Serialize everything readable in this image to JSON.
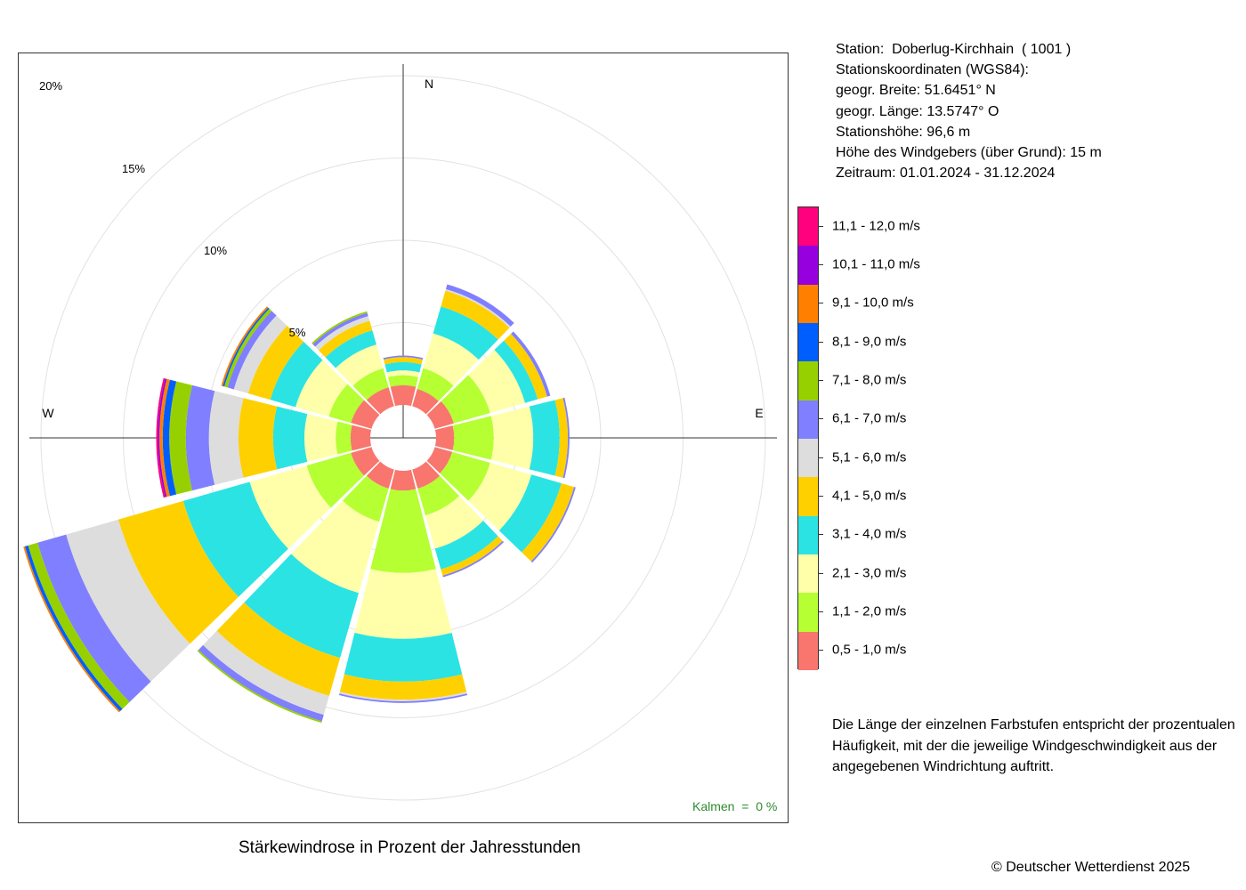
{
  "station": {
    "line1": "Station:  Doberlug-Kirchhain  ( 1001 )",
    "line2": "Stationskoordinaten (WGS84):",
    "line3": "geogr. Breite: 51.6451° N",
    "line4": "geogr. Länge: 13.5747° O",
    "line5": "Stationshöhe: 96,6 m",
    "line6": "Höhe des Windgebers (über Grund): 15 m",
    "line7": "Zeitraum: 01.01.2024 - 31.12.2024"
  },
  "note": "Die Länge der einzelnen Farbstufen entspricht der prozentualen Häufigkeit, mit der die jeweilige Windgeschwindigkeit aus der angegebenen Windrichtung auftritt.",
  "caption": "Stärkewindrose in Prozent der Jahresstunden",
  "copyright": "© Deutscher Wetterdienst  2025",
  "calm_label": "Kalmen  =  0 %",
  "chart_data": {
    "type": "windrose",
    "unit": "%",
    "radial_ticks": [
      5,
      10,
      15,
      20
    ],
    "radial_tick_labels": [
      "5%",
      "10%",
      "15%",
      "20%"
    ],
    "compass_labels": {
      "N": "N",
      "E": "E",
      "W": "W"
    },
    "calm_percent": 0,
    "directions_deg": [
      0,
      30,
      60,
      90,
      120,
      150,
      180,
      210,
      240,
      270,
      300,
      330
    ],
    "speed_classes": [
      {
        "label": "0,5 - 1,0 m/s",
        "color": "#F8766D"
      },
      {
        "label": "1,1 - 2,0 m/s",
        "color": "#B5FF33"
      },
      {
        "label": "2,1 - 3,0 m/s",
        "color": "#FFFFAA"
      },
      {
        "label": "3,1 - 4,0 m/s",
        "color": "#2BE3E3"
      },
      {
        "label": "4,1 - 5,0 m/s",
        "color": "#FFD000"
      },
      {
        "label": "5,1 - 6,0 m/s",
        "color": "#DDDDDD"
      },
      {
        "label": "6,1 - 7,0 m/s",
        "color": "#7F7FFF"
      },
      {
        "label": "7,1 - 8,0 m/s",
        "color": "#96D000"
      },
      {
        "label": "8,1 - 9,0 m/s",
        "color": "#005EFF"
      },
      {
        "label": "9,1 - 10,0 m/s",
        "color": "#FF8000"
      },
      {
        "label": "10,1 - 11,0 m/s",
        "color": "#9600DE"
      },
      {
        "label": "11,1 - 12,0 m/s",
        "color": "#FF007E"
      }
    ],
    "values": [
      [
        1.2,
        0.6,
        0.3,
        0.5,
        0.3,
        0.0,
        0.1,
        0.0,
        0.0,
        0.0,
        0.0,
        0.0
      ],
      [
        1.1,
        1.3,
        2.2,
        1.7,
        1.0,
        0.1,
        0.3,
        0.0,
        0.0,
        0.0,
        0.0,
        0.0
      ],
      [
        1.2,
        2.3,
        2.2,
        0.8,
        0.6,
        0.0,
        0.2,
        0.0,
        0.0,
        0.0,
        0.0,
        0.0
      ],
      [
        1.1,
        2.4,
        2.4,
        1.6,
        0.5,
        0.0,
        0.1,
        0.0,
        0.0,
        0.0,
        0.0,
        0.0
      ],
      [
        1.1,
        2.4,
        2.6,
        1.9,
        0.8,
        0.0,
        0.1,
        0.0,
        0.0,
        0.0,
        0.0,
        0.0
      ],
      [
        1.2,
        1.7,
        2.1,
        1.3,
        0.4,
        0.0,
        0.1,
        0.0,
        0.0,
        0.0,
        0.0,
        0.0
      ],
      [
        1.2,
        5.0,
        4.0,
        2.6,
        1.1,
        0.1,
        0.1,
        0.0,
        0.0,
        0.0,
        0.0,
        0.0
      ],
      [
        1.2,
        2.1,
        4.5,
        4.1,
        2.4,
        1.2,
        0.4,
        0.1,
        0.0,
        0.0,
        0.0,
        0.0
      ],
      [
        1.3,
        2.8,
        3.6,
        4.2,
        4.1,
        3.3,
        1.8,
        0.6,
        0.2,
        0.1,
        0.0,
        0.0
      ],
      [
        1.2,
        0.9,
        1.9,
        1.9,
        2.1,
        1.8,
        1.4,
        1.0,
        0.4,
        0.2,
        0.1,
        0.1
      ],
      [
        1.3,
        1.4,
        2.1,
        1.6,
        1.4,
        0.9,
        0.4,
        0.2,
        0.1,
        0.1,
        0.0,
        0.0
      ],
      [
        1.2,
        1.2,
        1.5,
        0.9,
        0.6,
        0.3,
        0.2,
        0.1,
        0.0,
        0.0,
        0.0,
        0.0
      ]
    ]
  }
}
